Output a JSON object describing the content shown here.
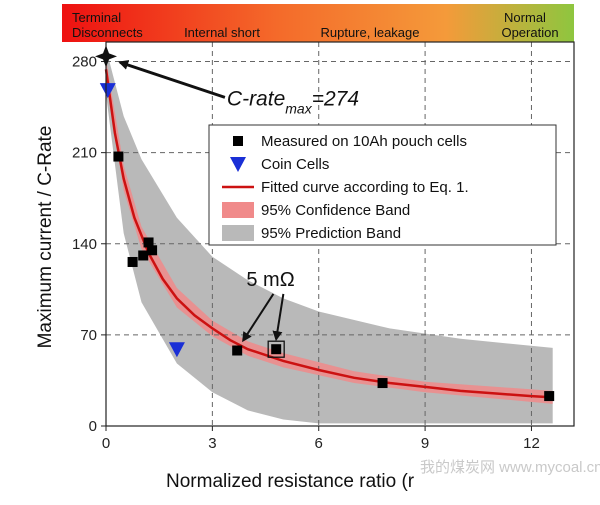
{
  "chart_data": {
    "type": "scatter",
    "xlabel": "Normalized resistance ratio (r",
    "ylabel": "Maximum current / C-Rate",
    "xlim": [
      0,
      13.2
    ],
    "ylim": [
      0,
      295
    ],
    "x_ticks": [
      0,
      3,
      6,
      9,
      12
    ],
    "y_ticks": [
      0,
      70,
      140,
      210,
      280
    ],
    "grid": true,
    "grid_style": "dashed",
    "legend_position": "right",
    "top_band": {
      "colors": [
        "#ee1111",
        "#f46a2a",
        "#f49a3a",
        "#8ec63f"
      ],
      "labels": [
        {
          "text": "Terminal",
          "x": 0
        },
        {
          "text": "Disconnects",
          "x": 0
        },
        {
          "text": "Internal short",
          "x": 3.4
        },
        {
          "text": "Rupture, leakage",
          "x": 7.6
        },
        {
          "text": "Normal",
          "x": 12.1
        },
        {
          "text": "Operation",
          "x": 12.1
        }
      ]
    },
    "series": [
      {
        "name": "Measured on 10Ah pouch cells",
        "marker": "square",
        "color": "#000000",
        "points": [
          [
            0.35,
            207
          ],
          [
            0.75,
            126
          ],
          [
            1.05,
            131
          ],
          [
            1.2,
            141
          ],
          [
            1.3,
            135
          ],
          [
            3.7,
            58
          ],
          [
            4.8,
            59
          ],
          [
            7.8,
            33
          ],
          [
            12.5,
            23
          ]
        ]
      },
      {
        "name": "Coin Cells",
        "marker": "triangle-down",
        "color": "#1a2fd6",
        "points": [
          [
            0.05,
            258
          ],
          [
            2.0,
            59
          ]
        ]
      },
      {
        "name": "Fitted curve according to Eq. 1.",
        "kind": "line",
        "color": "#cc1111",
        "points": [
          [
            0.0,
            274
          ],
          [
            0.25,
            225
          ],
          [
            0.5,
            190
          ],
          [
            0.8,
            160
          ],
          [
            1.2,
            133
          ],
          [
            1.6,
            113
          ],
          [
            2.0,
            98
          ],
          [
            2.5,
            85
          ],
          [
            3.0,
            75
          ],
          [
            3.5,
            66
          ],
          [
            4.0,
            59
          ],
          [
            5.0,
            50
          ],
          [
            6.0,
            43
          ],
          [
            7.0,
            37
          ],
          [
            8.0,
            33
          ],
          [
            9.0,
            30
          ],
          [
            10.0,
            27
          ],
          [
            11.0,
            25
          ],
          [
            12.0,
            23
          ],
          [
            12.6,
            22
          ]
        ]
      },
      {
        "name": "95% Confidence Band",
        "kind": "band",
        "color": "#f08a8a",
        "upper": [
          [
            0.0,
            282
          ],
          [
            0.5,
            200
          ],
          [
            1.0,
            153
          ],
          [
            2.0,
            106
          ],
          [
            3.0,
            81
          ],
          [
            4.0,
            65
          ],
          [
            5.0,
            56
          ],
          [
            7.0,
            42
          ],
          [
            9.0,
            34
          ],
          [
            12.6,
            27
          ]
        ],
        "lower": [
          [
            0.0,
            266
          ],
          [
            0.5,
            181
          ],
          [
            1.0,
            136
          ],
          [
            2.0,
            91
          ],
          [
            3.0,
            69
          ],
          [
            4.0,
            54
          ],
          [
            5.0,
            45
          ],
          [
            7.0,
            33
          ],
          [
            9.0,
            26
          ],
          [
            12.6,
            17
          ]
        ]
      },
      {
        "name": "95% Prediction Band",
        "kind": "band",
        "color": "#b9b9b9",
        "upper": [
          [
            0.0,
            290
          ],
          [
            0.5,
            238
          ],
          [
            1.0,
            205
          ],
          [
            2.0,
            160
          ],
          [
            3.0,
            130
          ],
          [
            4.0,
            112
          ],
          [
            5.0,
            98
          ],
          [
            6.0,
            88
          ],
          [
            8.0,
            75
          ],
          [
            10.0,
            67
          ],
          [
            12.6,
            60
          ]
        ],
        "lower": [
          [
            0.0,
            255
          ],
          [
            0.5,
            148
          ],
          [
            1.0,
            95
          ],
          [
            2.0,
            48
          ],
          [
            3.0,
            26
          ],
          [
            4.0,
            12
          ],
          [
            5.0,
            5
          ],
          [
            6.0,
            2
          ],
          [
            8.0,
            2
          ],
          [
            10.0,
            2
          ],
          [
            12.6,
            2
          ]
        ]
      }
    ],
    "annotations": [
      {
        "text_pre": "C-rate",
        "text_sub": "max",
        "text_post": "=274",
        "x": 2.0,
        "y": 254,
        "target": [
          0.0,
          284
        ]
      },
      {
        "text": "5 mΩ",
        "x": 4.1,
        "y": 103,
        "target_markers": [
          [
            3.7,
            58
          ],
          [
            4.8,
            59
          ]
        ]
      }
    ],
    "watermark": "我的煤炭网 www.mycoal.cn"
  }
}
